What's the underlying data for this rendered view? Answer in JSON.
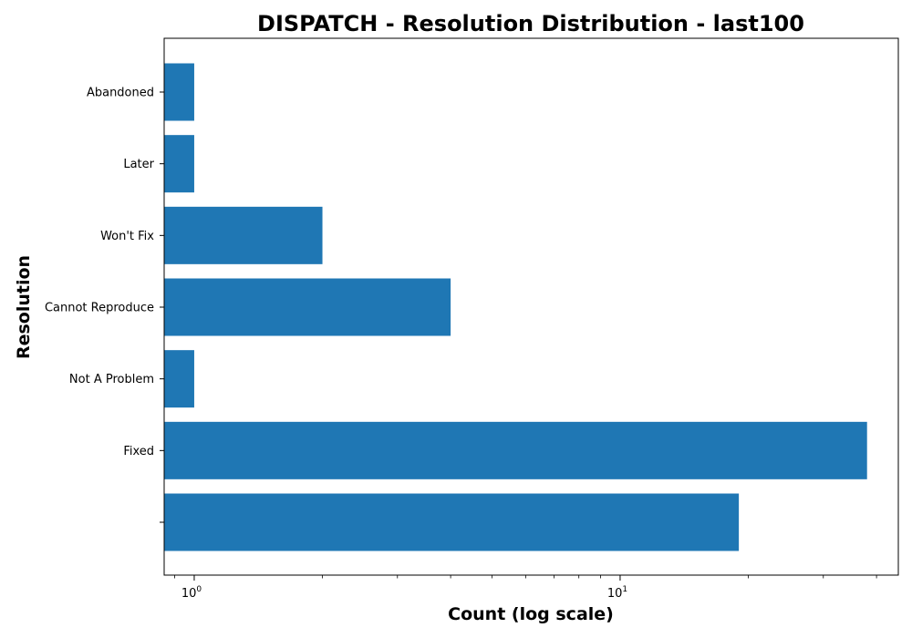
{
  "chart_data": {
    "type": "bar",
    "orientation": "horizontal",
    "title": "DISPATCH - Resolution Distribution - last100",
    "xlabel": "Count (log scale)",
    "ylabel": "Resolution",
    "x_scale": "log",
    "xlim": [
      0.85,
      45
    ],
    "x_major_ticks": [
      {
        "value": 1,
        "base": "10",
        "exponent": "0"
      },
      {
        "value": 10,
        "base": "10",
        "exponent": "1"
      }
    ],
    "categories": [
      "",
      "Fixed",
      "Not A Problem",
      "Cannot Reproduce",
      "Won't Fix",
      "Later",
      "Abandoned"
    ],
    "values": [
      19,
      38,
      1,
      4,
      2,
      1,
      1
    ],
    "bar_color": "#1f77b4",
    "grid": false,
    "legend": "none"
  }
}
